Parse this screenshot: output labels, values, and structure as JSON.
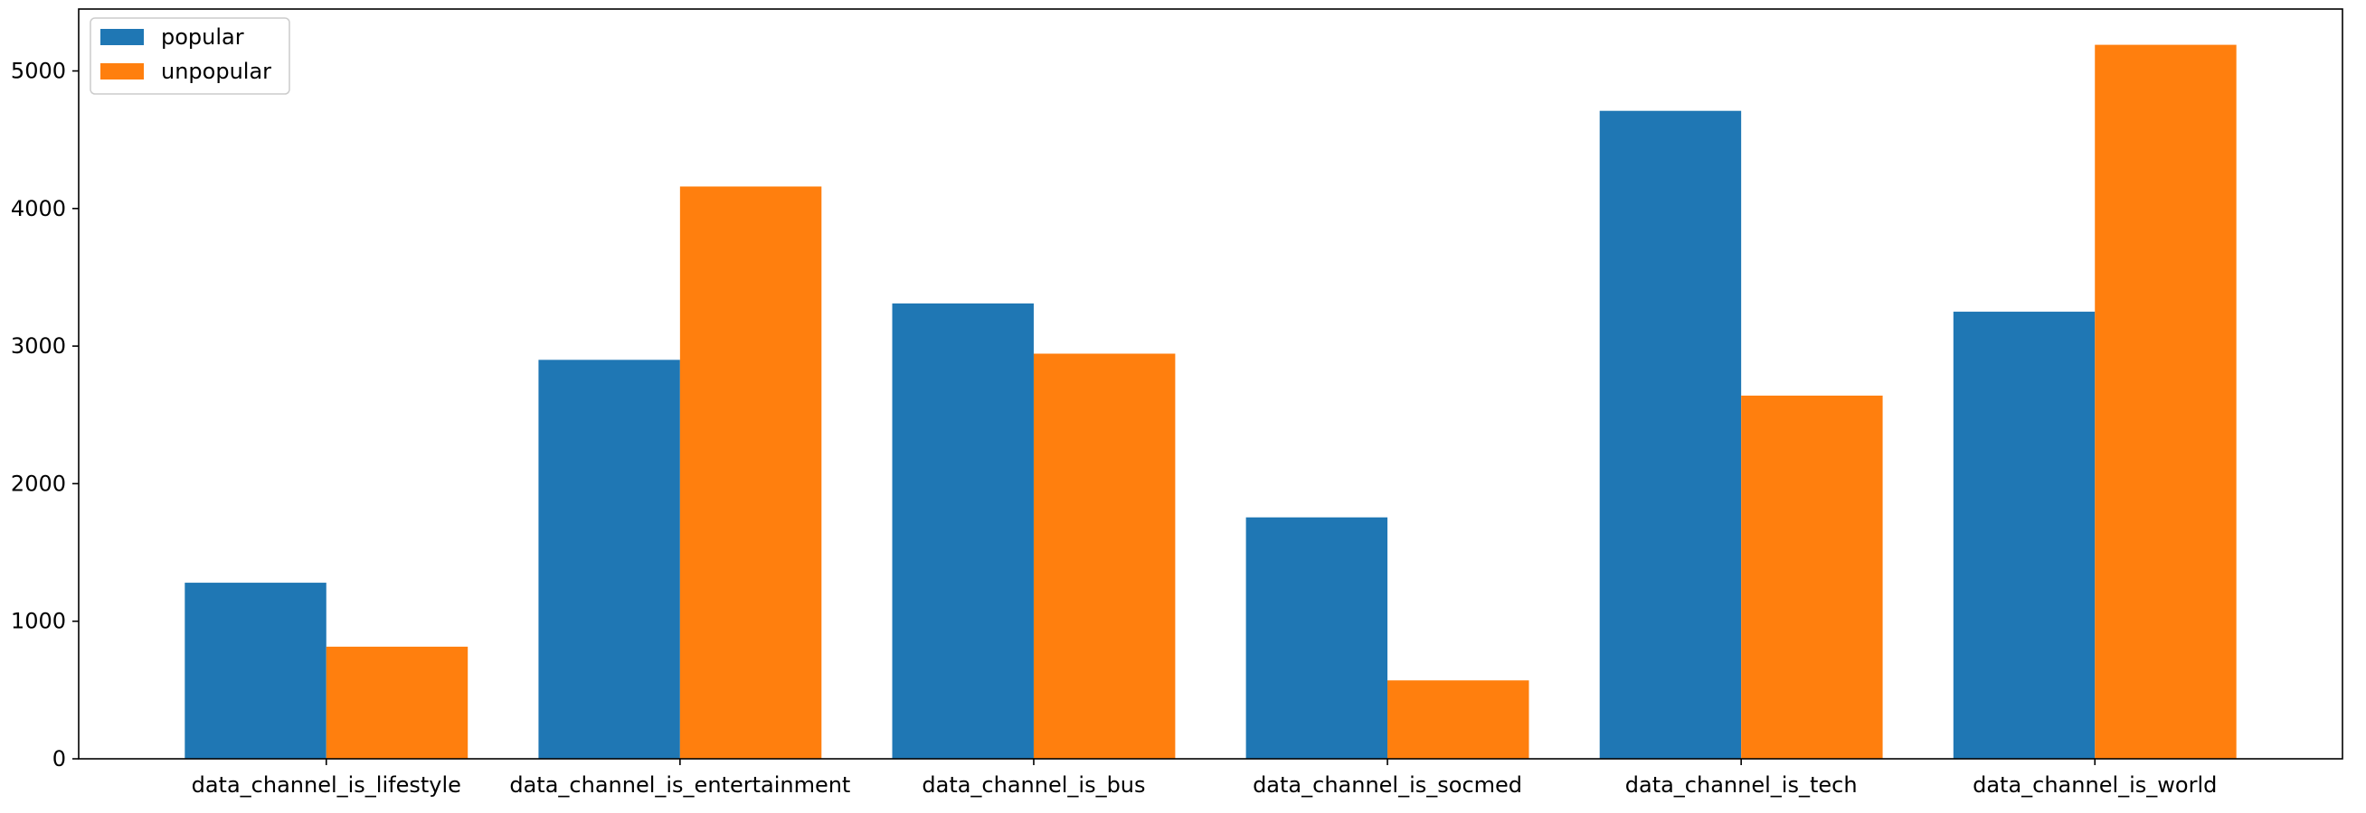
{
  "chart_data": {
    "type": "bar",
    "title": "",
    "xlabel": "",
    "ylabel": "",
    "categories": [
      "data_channel_is_lifestyle",
      "data_channel_is_entertainment",
      "data_channel_is_bus",
      "data_channel_is_socmed",
      "data_channel_is_tech",
      "data_channel_is_world"
    ],
    "series": [
      {
        "name": "popular",
        "color": "#1f77b4",
        "values": [
          1280,
          2900,
          3310,
          1755,
          4710,
          3250
        ]
      },
      {
        "name": "unpopular",
        "color": "#ff7f0e",
        "values": [
          815,
          4160,
          2945,
          570,
          2640,
          5190
        ]
      }
    ],
    "ylim": [
      0,
      5450
    ],
    "yticks": [
      0,
      1000,
      2000,
      3000,
      4000,
      5000
    ],
    "grid": false,
    "legend_position": "top-left"
  }
}
